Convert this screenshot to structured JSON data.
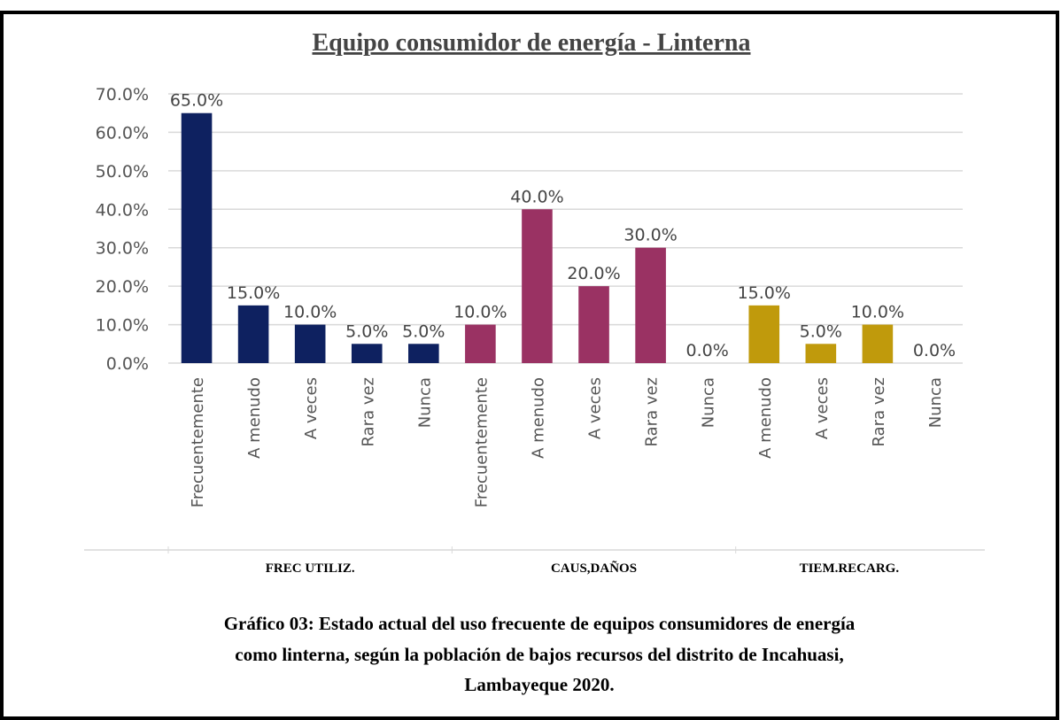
{
  "chart_data": {
    "type": "bar",
    "title": "Equipo  consumidor  de energía - Linterna",
    "ylim": [
      0,
      70
    ],
    "yticks": [
      {
        "value": 0,
        "label": "0.0%"
      },
      {
        "value": 10,
        "label": "10.0%"
      },
      {
        "value": 20,
        "label": "20.0%"
      },
      {
        "value": 30,
        "label": "30.0%"
      },
      {
        "value": 40,
        "label": "40.0%"
      },
      {
        "value": 50,
        "label": "50.0%"
      },
      {
        "value": 60,
        "label": "60.0%"
      },
      {
        "value": 70,
        "label": "70.0%"
      }
    ],
    "grid": true,
    "groups": [
      {
        "name": "FREC UTILIZ.",
        "color": "#0e2160",
        "categories": [
          "Frecuentemente",
          "A menudo",
          "A veces",
          "Rara vez",
          "Nunca"
        ],
        "values": [
          65,
          15,
          10,
          5,
          5
        ],
        "value_labels": [
          "65.0%",
          "15.0%",
          "10.0%",
          "5.0%",
          "5.0%"
        ]
      },
      {
        "name": "CAUS,DAÑOS",
        "color": "#9a3263",
        "categories": [
          "Frecuentemente",
          "A menudo",
          "A veces",
          "Rara vez",
          "Nunca"
        ],
        "values": [
          10,
          40,
          20,
          30,
          0
        ],
        "value_labels": [
          "10.0%",
          "40.0%",
          "20.0%",
          "30.0%",
          "0.0%"
        ]
      },
      {
        "name": "TIEM.RECARG.",
        "color": "#c09a0c",
        "categories": [
          "A menudo",
          "A veces",
          "Rara vez",
          "Nunca"
        ],
        "values": [
          15,
          5,
          10,
          0
        ],
        "value_labels": [
          "15.0%",
          "5.0%",
          "10.0%",
          "0.0%"
        ]
      }
    ],
    "caption": [
      "Gráfico 03: Estado actual del uso frecuente de equipos consumidores de energía",
      "como linterna, según la población de bajos recursos del distrito de Incahuasi,",
      "Lambayeque 2020."
    ]
  }
}
